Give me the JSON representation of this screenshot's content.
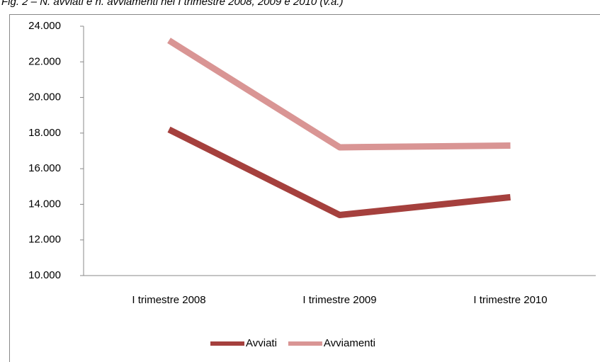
{
  "chart_data": {
    "type": "line",
    "title": "Fig. 2 – N. avviati e n. avviamenti nel I trimestre 2008, 2009 e 2010 (v.a.)",
    "categories": [
      "I trimestre 2008",
      "I trimestre 2009",
      "I trimestre 2010"
    ],
    "series": [
      {
        "name": "Avviati",
        "color": "#a5403d",
        "values": [
          18200,
          13400,
          14400
        ]
      },
      {
        "name": "Avviamenti",
        "color": "#d99594",
        "values": [
          23200,
          17200,
          17300
        ]
      }
    ],
    "ylim": [
      10000,
      24000
    ],
    "yticks": [
      {
        "value": 10000,
        "label": "10.000"
      },
      {
        "value": 12000,
        "label": "12.000"
      },
      {
        "value": 14000,
        "label": "14.000"
      },
      {
        "value": 16000,
        "label": "16.000"
      },
      {
        "value": 18000,
        "label": "18.000"
      },
      {
        "value": 20000,
        "label": "20.000"
      },
      {
        "value": 22000,
        "label": "22.000"
      },
      {
        "value": 24000,
        "label": "24.000"
      }
    ],
    "legend": "bottom",
    "grid": false
  }
}
